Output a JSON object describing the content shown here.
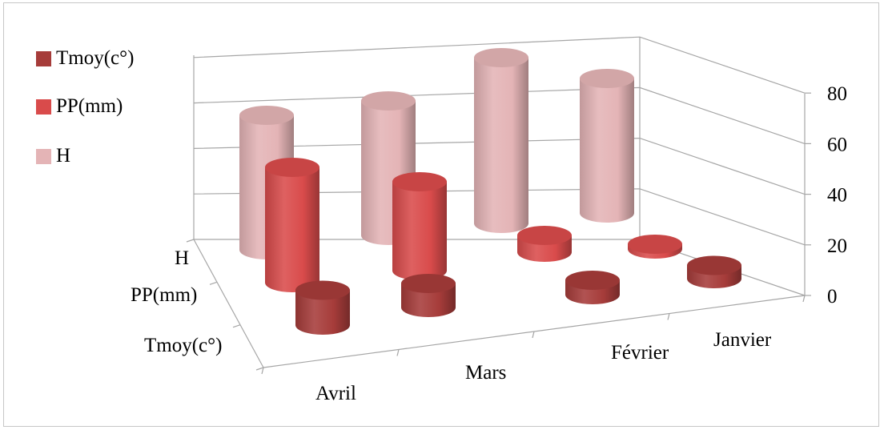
{
  "chart_data": {
    "type": "bar",
    "variant": "3d-cylinder",
    "title": "",
    "categories": [
      "Avril",
      "Mars",
      "Février",
      "Janvier"
    ],
    "series": [
      {
        "name": "Tmoy(c°)",
        "values": [
          14.5,
          10,
          6,
          5.5
        ]
      },
      {
        "name": "PP(mm)",
        "values": [
          48,
          37,
          7,
          2
        ]
      },
      {
        "name": "H",
        "values": [
          56,
          56,
          69,
          56
        ]
      }
    ],
    "y_ticks": [
      "0",
      "20",
      "40",
      "60",
      "80"
    ],
    "ylim": [
      0,
      80
    ],
    "grid": true,
    "legend_position": "left",
    "colors": {
      "Tmoy(c°)": "#a63c3a",
      "PP(mm)": "#d94b4b",
      "H": "#e4b4b6",
      "grid": "#a6a6a6"
    }
  }
}
